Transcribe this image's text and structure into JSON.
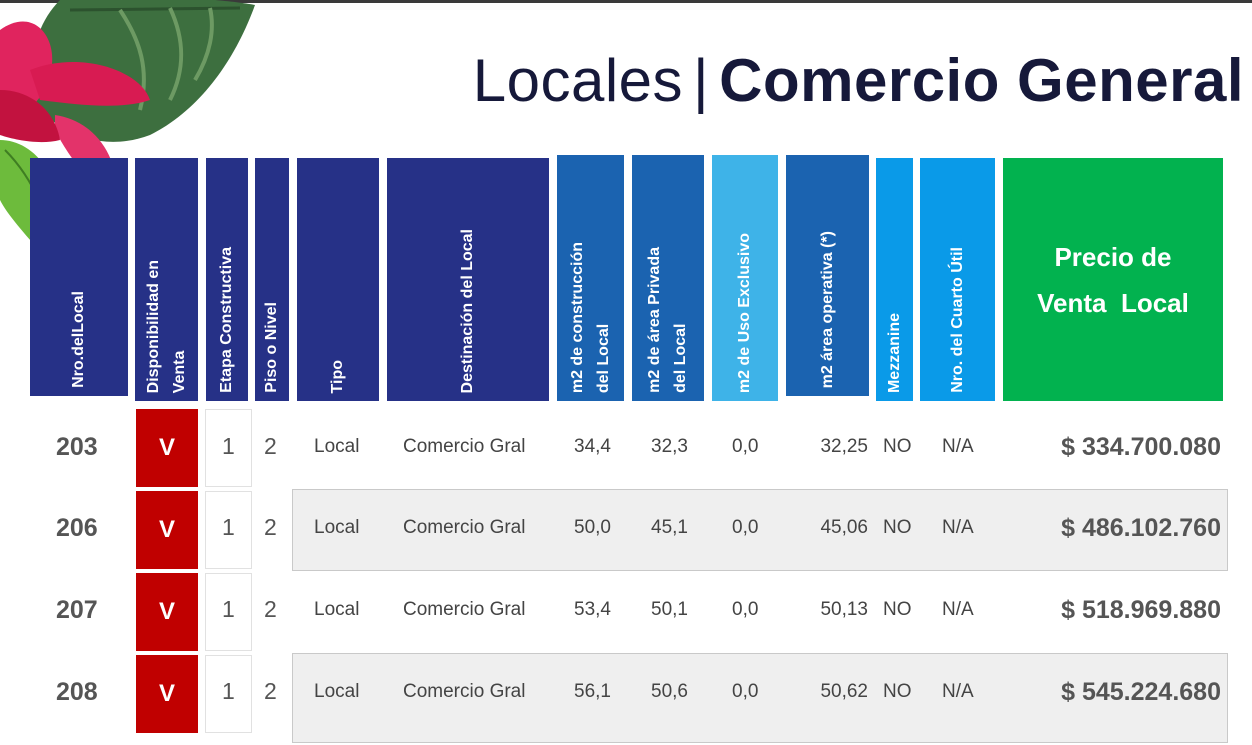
{
  "title": {
    "light": "Locales",
    "separator": "|",
    "bold": "Comercio General"
  },
  "headers": {
    "nro_local": "Nro.delLocal",
    "disponibilidad": "Disponibilidad en\nVenta",
    "etapa": "Etapa Constructiva",
    "piso": "Piso o Nivel",
    "tipo": "Tipo",
    "destinacion": "Destinación del Local",
    "m2_construccion": "m2 de construcción\ndel Local",
    "m2_privada": "m2 de área Privada\ndel Local",
    "m2_uso_exclusivo": "m2 de Uso Exclusivo",
    "m2_operativa": "m2 área operativa (*)",
    "mezzanine": "Mezzanine",
    "cuarto_util": "Nro. del Cuarto Útil",
    "precio": "Precio de\nVenta  Local"
  },
  "colors": {
    "navy": "#263187",
    "blue": "#1b63b0",
    "sky": "#3eb3e8",
    "cyan": "#0a9ae8",
    "green": "#02b24f",
    "red": "#c00000",
    "title": "#16193a"
  },
  "rows": [
    {
      "nro": "203",
      "disp": "V",
      "etapa": "1",
      "piso": "2",
      "tipo": "Local",
      "destinacion": "Comercio Gral",
      "m2c": "34,4",
      "m2p": "32,3",
      "m2u": "0,0",
      "m2o": "32,25",
      "mezz": "NO",
      "cuarto": "N/A",
      "precio": "$ 334.700.080"
    },
    {
      "nro": "206",
      "disp": "V",
      "etapa": "1",
      "piso": "2",
      "tipo": "Local",
      "destinacion": "Comercio Gral",
      "m2c": "50,0",
      "m2p": "45,1",
      "m2u": "0,0",
      "m2o": "45,06",
      "mezz": "NO",
      "cuarto": "N/A",
      "precio": "$ 486.102.760"
    },
    {
      "nro": "207",
      "disp": "V",
      "etapa": "1",
      "piso": "2",
      "tipo": "Local",
      "destinacion": "Comercio Gral",
      "m2c": "53,4",
      "m2p": "50,1",
      "m2u": "0,0",
      "m2o": "50,13",
      "mezz": "NO",
      "cuarto": "N/A",
      "precio": "$ 518.969.880"
    },
    {
      "nro": "208",
      "disp": "V",
      "etapa": "1",
      "piso": "2",
      "tipo": "Local",
      "destinacion": "Comercio Gral",
      "m2c": "56,1",
      "m2p": "50,6",
      "m2u": "0,0",
      "m2o": "50,62",
      "mezz": "NO",
      "cuarto": "N/A",
      "precio": "$ 545.224.680"
    }
  ]
}
